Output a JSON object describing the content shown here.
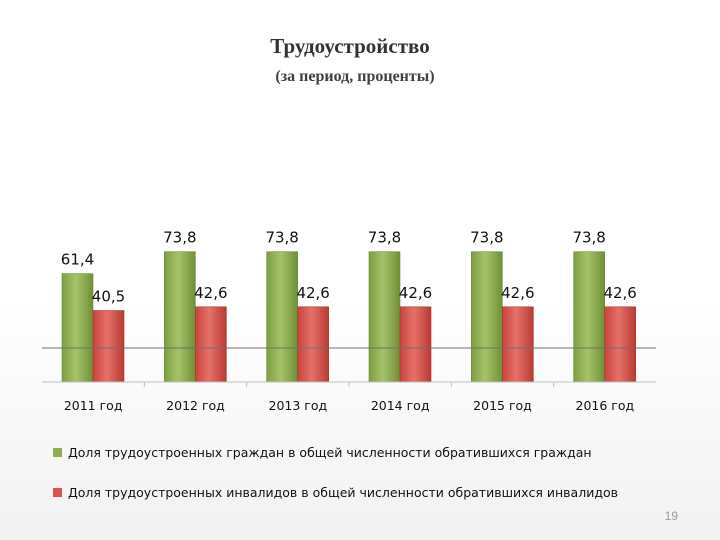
{
  "chart_data": {
    "type": "bar",
    "title": "Трудоустройство",
    "subtitle": "(за период, проценты)",
    "categories": [
      "2011 год",
      "2012 год",
      "2013 год",
      "2014 год",
      "2015 год",
      "2016 год"
    ],
    "series": [
      {
        "name": "Доля трудоустроенных граждан в общей численности обратившихся граждан",
        "color": "#8faf4f",
        "values": [
          61.4,
          73.8,
          73.8,
          73.8,
          73.8,
          73.8
        ],
        "labels": [
          "61,4",
          "73,8",
          "73,8",
          "73,8",
          "73,8",
          "73,8"
        ]
      },
      {
        "name": "Доля трудоустроенных инвалидов в общей численности обратившихся инвалидов",
        "color": "#d9534a",
        "values": [
          40.5,
          42.6,
          42.6,
          42.6,
          42.6,
          42.6
        ],
        "labels": [
          "40,5",
          "42,6",
          "42,6",
          "42,6",
          "42,6",
          "42,6"
        ]
      }
    ],
    "legend_position": "bottom",
    "grid": false
  },
  "page_number": "19"
}
